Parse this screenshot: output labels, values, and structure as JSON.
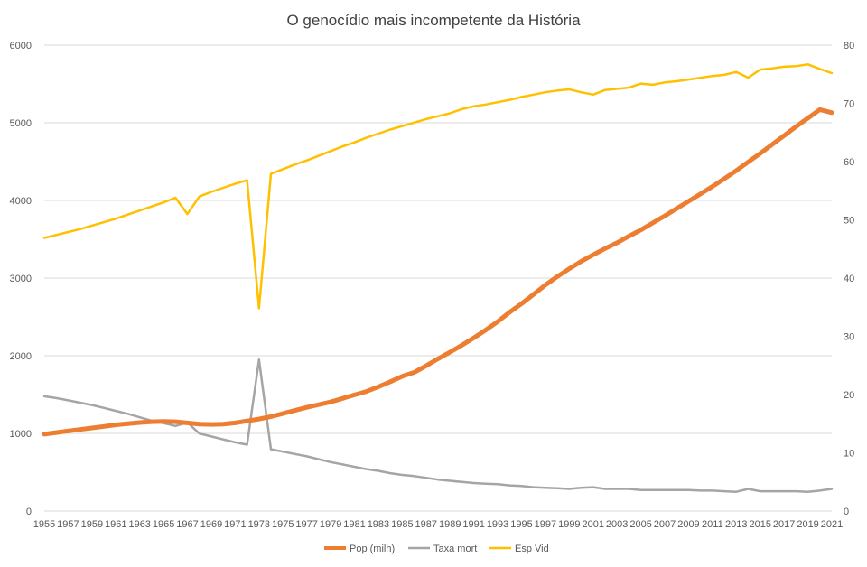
{
  "chart_data": {
    "type": "line",
    "title": "O genocídio mais incompetente da História",
    "grid": true,
    "legend_position": "bottom",
    "x": [
      1955,
      1956,
      1957,
      1958,
      1959,
      1960,
      1961,
      1962,
      1963,
      1964,
      1965,
      1966,
      1967,
      1968,
      1969,
      1970,
      1971,
      1972,
      1973,
      1974,
      1975,
      1976,
      1977,
      1978,
      1979,
      1980,
      1981,
      1982,
      1983,
      1984,
      1985,
      1986,
      1987,
      1988,
      1989,
      1990,
      1991,
      1992,
      1993,
      1994,
      1995,
      1996,
      1997,
      1998,
      1999,
      2000,
      2001,
      2002,
      2003,
      2004,
      2005,
      2006,
      2007,
      2008,
      2009,
      2010,
      2011,
      2012,
      2013,
      2014,
      2015,
      2016,
      2017,
      2018,
      2019,
      2020,
      2021
    ],
    "x_tick_labels": [
      "1955",
      "1957",
      "1959",
      "1961",
      "1963",
      "1965",
      "1967",
      "1969",
      "1971",
      "1973",
      "1975",
      "1977",
      "1979",
      "1981",
      "1983",
      "1985",
      "1987",
      "1989",
      "1991",
      "1993",
      "1995",
      "1997",
      "1999",
      "2001",
      "2003",
      "2005",
      "2007",
      "2009",
      "2011",
      "2013",
      "2015",
      "2017",
      "2019",
      "2021"
    ],
    "y_left": {
      "ylim": [
        0,
        6000
      ],
      "ticks": [
        "0",
        "1000",
        "2000",
        "3000",
        "4000",
        "5000",
        "6000"
      ]
    },
    "y_right": {
      "ylim": [
        0,
        80
      ],
      "ticks": [
        "0",
        "10",
        "20",
        "30",
        "40",
        "50",
        "60",
        "70",
        "80"
      ]
    },
    "series": [
      {
        "name": "Pop (milh)",
        "axis": "left",
        "color": "#ED7D31",
        "width": 5,
        "values": [
          990,
          1010,
          1030,
          1050,
          1070,
          1090,
          1110,
          1125,
          1140,
          1150,
          1155,
          1150,
          1135,
          1120,
          1115,
          1120,
          1135,
          1160,
          1185,
          1215,
          1255,
          1295,
          1335,
          1370,
          1405,
          1450,
          1495,
          1540,
          1600,
          1665,
          1735,
          1785,
          1870,
          1960,
          2045,
          2135,
          2230,
          2330,
          2440,
          2560,
          2670,
          2790,
          2910,
          3020,
          3120,
          3215,
          3300,
          3380,
          3455,
          3540,
          3620,
          3710,
          3800,
          3895,
          3990,
          4085,
          4180,
          4280,
          4385,
          4495,
          4605,
          4720,
          4835,
          4950,
          5060,
          5170,
          5130
        ]
      },
      {
        "name": "Taxa mort",
        "axis": "right",
        "color": "#A5A5A5",
        "width": 2.5,
        "values": [
          19.7,
          19.4,
          19.0,
          18.6,
          18.2,
          17.7,
          17.2,
          16.7,
          16.1,
          15.5,
          15.1,
          14.6,
          15.2,
          13.3,
          12.8,
          12.3,
          11.8,
          11.4,
          26.0,
          10.6,
          10.2,
          9.8,
          9.4,
          8.9,
          8.4,
          8.0,
          7.6,
          7.2,
          6.9,
          6.5,
          6.2,
          6.0,
          5.7,
          5.4,
          5.2,
          5.0,
          4.8,
          4.7,
          4.6,
          4.4,
          4.3,
          4.1,
          4.0,
          3.9,
          3.8,
          4.0,
          4.1,
          3.8,
          3.8,
          3.8,
          3.6,
          3.6,
          3.6,
          3.6,
          3.6,
          3.5,
          3.5,
          3.4,
          3.3,
          3.8,
          3.4,
          3.4,
          3.4,
          3.4,
          3.3,
          3.5,
          3.8
        ]
      },
      {
        "name": "Esp Vid",
        "axis": "right",
        "color": "#FFC000",
        "width": 2.5,
        "values": [
          46.9,
          47.4,
          47.9,
          48.4,
          49.0,
          49.6,
          50.2,
          50.9,
          51.6,
          52.3,
          53.0,
          53.8,
          51.0,
          54.0,
          54.8,
          55.5,
          56.2,
          56.8,
          34.8,
          57.9,
          58.7,
          59.5,
          60.2,
          61.0,
          61.8,
          62.6,
          63.3,
          64.1,
          64.8,
          65.5,
          66.1,
          66.7,
          67.3,
          67.8,
          68.3,
          69.0,
          69.5,
          69.8,
          70.2,
          70.6,
          71.1,
          71.5,
          71.9,
          72.2,
          72.4,
          71.9,
          71.5,
          72.3,
          72.5,
          72.7,
          73.4,
          73.2,
          73.6,
          73.8,
          74.1,
          74.4,
          74.7,
          74.9,
          75.4,
          74.4,
          75.8,
          76.0,
          76.3,
          76.4,
          76.7,
          75.9,
          75.2
        ]
      }
    ]
  }
}
